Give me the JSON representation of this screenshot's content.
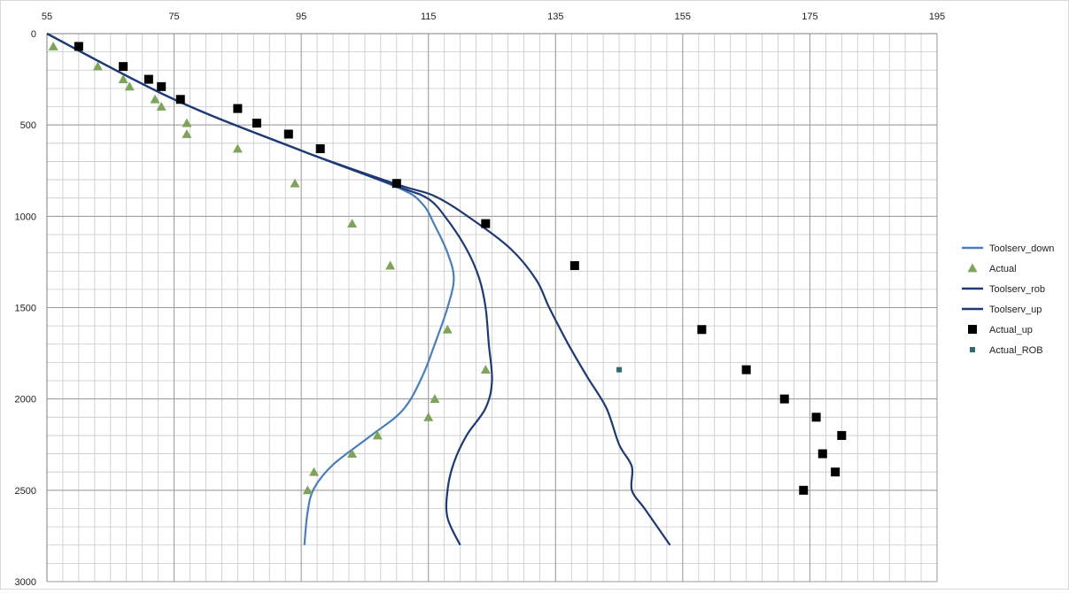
{
  "chart_data": {
    "type": "scatter",
    "x_ticks": [
      55,
      75,
      95,
      115,
      135,
      155,
      175,
      195
    ],
    "y_ticks": [
      0,
      500,
      1000,
      1500,
      2000,
      2500,
      3000
    ],
    "xlim": [
      55,
      195
    ],
    "ylim": [
      0,
      3000
    ],
    "y_reversed": true,
    "x_axis_position": "top",
    "grid": true,
    "minor_grid_x_step": 2.5,
    "minor_grid_y_step": 100,
    "legend_position": "right",
    "series": [
      {
        "name": "Toolserv_down",
        "kind": "line",
        "color": "#4a7ebb",
        "points": [
          [
            55,
            0
          ],
          [
            75,
            360
          ],
          [
            95,
            640
          ],
          [
            110,
            840
          ],
          [
            114,
            930
          ],
          [
            116,
            1050
          ],
          [
            118,
            1200
          ],
          [
            119,
            1340
          ],
          [
            118,
            1500
          ],
          [
            116,
            1700
          ],
          [
            114,
            1880
          ],
          [
            111,
            2060
          ],
          [
            106,
            2200
          ],
          [
            100,
            2360
          ],
          [
            97,
            2490
          ],
          [
            96,
            2620
          ],
          [
            95.5,
            2800
          ]
        ]
      },
      {
        "name": "Actual",
        "kind": "marker",
        "marker": "triangle",
        "color": "#7ea35a",
        "points": [
          [
            56,
            70
          ],
          [
            63,
            180
          ],
          [
            67,
            250
          ],
          [
            68,
            290
          ],
          [
            72,
            360
          ],
          [
            73,
            400
          ],
          [
            77,
            490
          ],
          [
            77,
            550
          ],
          [
            85,
            630
          ],
          [
            94,
            820
          ],
          [
            103,
            1040
          ],
          [
            109,
            1270
          ],
          [
            118,
            1620
          ],
          [
            124,
            1840
          ],
          [
            116,
            2000
          ],
          [
            115,
            2100
          ],
          [
            107,
            2200
          ],
          [
            103,
            2300
          ],
          [
            97,
            2400
          ],
          [
            96,
            2500
          ]
        ]
      },
      {
        "name": "Toolserv_rob",
        "kind": "line",
        "color": "#1f3a73",
        "points": [
          [
            55,
            0
          ],
          [
            75,
            360
          ],
          [
            95,
            640
          ],
          [
            110,
            835
          ],
          [
            115,
            905
          ],
          [
            118,
            1020
          ],
          [
            121,
            1180
          ],
          [
            123,
            1340
          ],
          [
            124,
            1500
          ],
          [
            124.5,
            1700
          ],
          [
            125,
            1900
          ],
          [
            124,
            2050
          ],
          [
            121,
            2200
          ],
          [
            119,
            2350
          ],
          [
            118,
            2500
          ],
          [
            118,
            2650
          ],
          [
            120,
            2800
          ]
        ]
      },
      {
        "name": "Toolserv_up",
        "kind": "line",
        "color": "#1f3a73",
        "points": [
          [
            55,
            0
          ],
          [
            75,
            360
          ],
          [
            95,
            640
          ],
          [
            110,
            825
          ],
          [
            116,
            890
          ],
          [
            122,
            1020
          ],
          [
            128,
            1180
          ],
          [
            132,
            1350
          ],
          [
            134,
            1500
          ],
          [
            137,
            1700
          ],
          [
            140,
            1880
          ],
          [
            143,
            2050
          ],
          [
            145,
            2250
          ],
          [
            147,
            2370
          ],
          [
            147,
            2500
          ],
          [
            149,
            2600
          ],
          [
            152,
            2750
          ],
          [
            153,
            2800
          ]
        ]
      },
      {
        "name": "Actual_up",
        "kind": "marker",
        "marker": "square",
        "color": "#000000",
        "points": [
          [
            60,
            70
          ],
          [
            67,
            180
          ],
          [
            71,
            250
          ],
          [
            73,
            290
          ],
          [
            76,
            360
          ],
          [
            85,
            410
          ],
          [
            88,
            490
          ],
          [
            93,
            550
          ],
          [
            98,
            630
          ],
          [
            110,
            820
          ],
          [
            124,
            1040
          ],
          [
            138,
            1270
          ],
          [
            158,
            1620
          ],
          [
            165,
            1840
          ],
          [
            171,
            2000
          ],
          [
            176,
            2100
          ],
          [
            180,
            2200
          ],
          [
            177,
            2300
          ],
          [
            179,
            2400
          ],
          [
            174,
            2500
          ]
        ]
      },
      {
        "name": "Actual_ROB",
        "kind": "marker",
        "marker": "small-square",
        "color": "#2e6a70",
        "points": [
          [
            145,
            1840
          ]
        ]
      }
    ]
  }
}
